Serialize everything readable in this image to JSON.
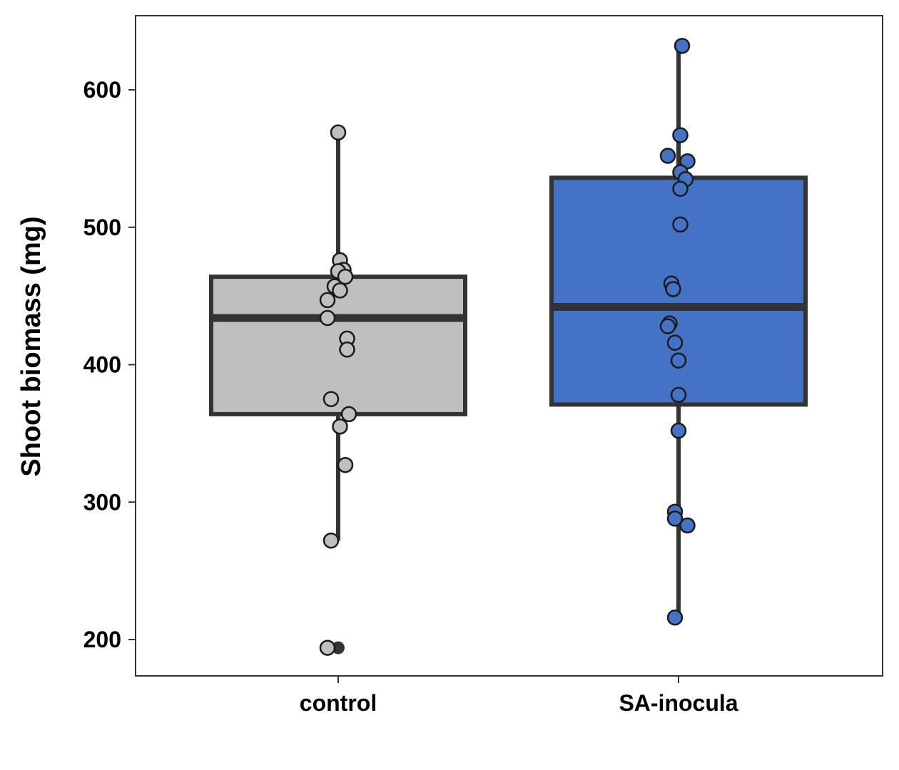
{
  "chart_data": {
    "type": "boxplot",
    "ylabel": "Shoot biomass (mg)",
    "xlabel": "",
    "ylim": [
      172,
      652
    ],
    "yticks": [
      200,
      300,
      400,
      500,
      600
    ],
    "grid": false,
    "legend": "none",
    "categories": [
      "control",
      "SA-inocula"
    ],
    "groups": [
      {
        "name": "control",
        "fill": "#bfbfbf",
        "box": {
          "q1": 364,
          "median": 434,
          "q3": 464,
          "whisker_low": 272,
          "whisker_high": 569
        },
        "outliers": [
          194
        ],
        "points": [
          {
            "jitter": 0.0,
            "y": 569
          },
          {
            "jitter": 0.01,
            "y": 476
          },
          {
            "jitter": 0.03,
            "y": 469
          },
          {
            "jitter": 0.0,
            "y": 468
          },
          {
            "jitter": 0.04,
            "y": 464
          },
          {
            "jitter": -0.02,
            "y": 457
          },
          {
            "jitter": 0.01,
            "y": 454
          },
          {
            "jitter": -0.06,
            "y": 447
          },
          {
            "jitter": -0.06,
            "y": 434
          },
          {
            "jitter": 0.05,
            "y": 419
          },
          {
            "jitter": 0.05,
            "y": 411
          },
          {
            "jitter": -0.04,
            "y": 375
          },
          {
            "jitter": 0.06,
            "y": 364
          },
          {
            "jitter": 0.01,
            "y": 355
          },
          {
            "jitter": 0.04,
            "y": 327
          },
          {
            "jitter": -0.04,
            "y": 272
          },
          {
            "jitter": -0.06,
            "y": 194
          }
        ]
      },
      {
        "name": "SA-inocula",
        "fill": "#4472c4",
        "box": {
          "q1": 371,
          "median": 442,
          "q3": 536,
          "whisker_low": 216,
          "whisker_high": 632
        },
        "outliers": [],
        "points": [
          {
            "jitter": 0.02,
            "y": 632
          },
          {
            "jitter": 0.01,
            "y": 567
          },
          {
            "jitter": -0.06,
            "y": 552
          },
          {
            "jitter": 0.05,
            "y": 548
          },
          {
            "jitter": 0.01,
            "y": 540
          },
          {
            "jitter": 0.04,
            "y": 535
          },
          {
            "jitter": 0.01,
            "y": 528
          },
          {
            "jitter": 0.01,
            "y": 502
          },
          {
            "jitter": -0.04,
            "y": 459
          },
          {
            "jitter": -0.03,
            "y": 455
          },
          {
            "jitter": -0.05,
            "y": 430
          },
          {
            "jitter": -0.06,
            "y": 428
          },
          {
            "jitter": -0.02,
            "y": 416
          },
          {
            "jitter": 0.0,
            "y": 403
          },
          {
            "jitter": 0.0,
            "y": 378
          },
          {
            "jitter": 0.0,
            "y": 352
          },
          {
            "jitter": -0.02,
            "y": 293
          },
          {
            "jitter": -0.02,
            "y": 288
          },
          {
            "jitter": 0.05,
            "y": 283
          },
          {
            "jitter": -0.02,
            "y": 216
          }
        ]
      }
    ]
  }
}
